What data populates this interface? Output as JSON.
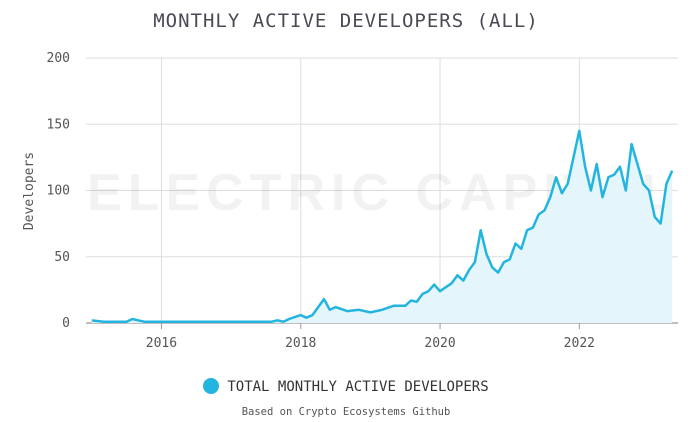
{
  "chart_data": {
    "type": "area",
    "title": "MONTHLY ACTIVE DEVELOPERS (ALL)",
    "ylabel": "Developers",
    "xlabel": "",
    "xlim": [
      "2014-12",
      "2023-06"
    ],
    "ylim": [
      0,
      200
    ],
    "y_ticks": [
      0,
      50,
      100,
      150,
      200
    ],
    "x_ticks": [
      "2016",
      "2018",
      "2020",
      "2022"
    ],
    "grid": true,
    "legend_position": "bottom",
    "watermark": "ELECTRIC CAPITAL",
    "series": [
      {
        "name": "TOTAL MONTHLY ACTIVE DEVELOPERS",
        "x": [
          "2015-01",
          "2015-03",
          "2015-05",
          "2015-07",
          "2015-08",
          "2015-10",
          "2016-01",
          "2016-03",
          "2016-06",
          "2016-08",
          "2016-11",
          "2017-02",
          "2017-05",
          "2017-08",
          "2017-09",
          "2017-10",
          "2017-11",
          "2018-01",
          "2018-02",
          "2018-03",
          "2018-04",
          "2018-05",
          "2018-06",
          "2018-07",
          "2018-09",
          "2018-11",
          "2019-01",
          "2019-03",
          "2019-05",
          "2019-07",
          "2019-08",
          "2019-09",
          "2019-10",
          "2019-11",
          "2019-12",
          "2020-01",
          "2020-02",
          "2020-03",
          "2020-04",
          "2020-05",
          "2020-06",
          "2020-07",
          "2020-08",
          "2020-09",
          "2020-10",
          "2020-11",
          "2020-12",
          "2021-01",
          "2021-02",
          "2021-03",
          "2021-04",
          "2021-05",
          "2021-06",
          "2021-07",
          "2021-08",
          "2021-09",
          "2021-10",
          "2021-11",
          "2021-12",
          "2022-01",
          "2022-02",
          "2022-03",
          "2022-04",
          "2022-05",
          "2022-06",
          "2022-07",
          "2022-08",
          "2022-09",
          "2022-10",
          "2022-11",
          "2022-12",
          "2023-01",
          "2023-02",
          "2023-03",
          "2023-04",
          "2023-05"
        ],
        "values": [
          2,
          1,
          1,
          1,
          3,
          1,
          1,
          1,
          1,
          1,
          1,
          1,
          1,
          1,
          2,
          1,
          3,
          6,
          4,
          6,
          12,
          18,
          10,
          12,
          9,
          10,
          8,
          10,
          13,
          13,
          17,
          16,
          22,
          24,
          29,
          24,
          27,
          30,
          36,
          32,
          40,
          46,
          70,
          52,
          42,
          38,
          46,
          48,
          60,
          56,
          70,
          72,
          82,
          85,
          95,
          110,
          98,
          105,
          125,
          145,
          118,
          100,
          120,
          95,
          110,
          112,
          118,
          100,
          135,
          120,
          105,
          100,
          80,
          75,
          105,
          115
        ]
      }
    ]
  },
  "colors": {
    "line": "#23b5df",
    "fill": "#e4f6fc",
    "grid": "#dddddd"
  },
  "legend": {
    "label": "TOTAL MONTHLY ACTIVE DEVELOPERS",
    "icon": "filled-circle"
  },
  "footer": {
    "source": "Based on Crypto Ecosystems Github"
  }
}
